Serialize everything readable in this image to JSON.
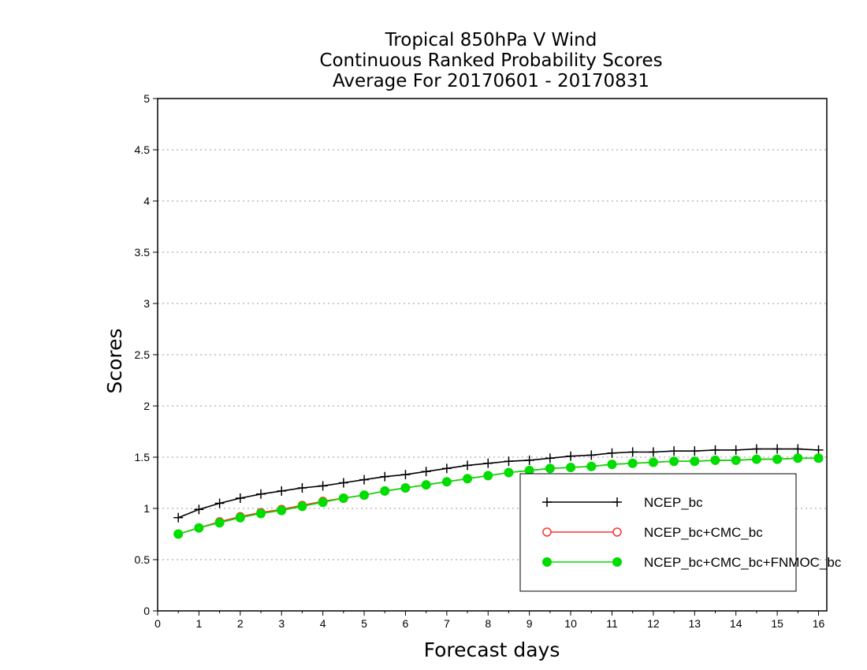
{
  "chart_data": {
    "type": "line",
    "title": [
      "Tropical 850hPa V Wind",
      "Continuous Ranked Probability Scores",
      "Average For 20170601 - 20170831"
    ],
    "xlabel": "Forecast days",
    "ylabel": "Scores",
    "xlim": [
      0,
      16.2
    ],
    "ylim": [
      0,
      5
    ],
    "xticks": [
      0,
      1,
      2,
      3,
      4,
      5,
      6,
      7,
      8,
      9,
      10,
      11,
      12,
      13,
      14,
      15,
      16
    ],
    "xtick_labels": [
      "0",
      "1",
      "2",
      "3",
      "4",
      "5",
      "6",
      "7",
      "8",
      "9",
      "10",
      "11",
      "12",
      "13",
      "14",
      "15",
      "16"
    ],
    "yticks": [
      0,
      0.5,
      1,
      1.5,
      2,
      2.5,
      3,
      3.5,
      4,
      4.5,
      5
    ],
    "ytick_labels": [
      "0",
      "0.5",
      "1",
      "1.5",
      "2",
      "2.5",
      "3",
      "3.5",
      "4",
      "4.5",
      "5"
    ],
    "grid": "horizontal dotted",
    "legend_position": "lower-right",
    "x": [
      0.5,
      1,
      1.5,
      2,
      2.5,
      3,
      3.5,
      4,
      4.5,
      5,
      5.5,
      6,
      6.5,
      7,
      7.5,
      8,
      8.5,
      9,
      9.5,
      10,
      10.5,
      11,
      11.5,
      12,
      12.5,
      13,
      13.5,
      14,
      14.5,
      15,
      15.5,
      16
    ],
    "series": [
      {
        "name": "NCEP_bc",
        "color": "#000000",
        "marker": "plus",
        "values": [
          0.91,
          0.99,
          1.05,
          1.1,
          1.14,
          1.17,
          1.2,
          1.22,
          1.25,
          1.28,
          1.31,
          1.33,
          1.36,
          1.39,
          1.42,
          1.44,
          1.46,
          1.47,
          1.49,
          1.51,
          1.52,
          1.54,
          1.55,
          1.55,
          1.56,
          1.56,
          1.57,
          1.57,
          1.58,
          1.58,
          1.58,
          1.57
        ]
      },
      {
        "name": "NCEP_bc+CMC_bc",
        "color": "#ff3030",
        "marker": "open-circle",
        "values": [
          0.75,
          0.81,
          0.87,
          0.92,
          0.96,
          0.99,
          1.03,
          1.07,
          1.1,
          1.13,
          1.17,
          1.2,
          1.23,
          1.26,
          1.29,
          1.32,
          1.35,
          1.37,
          1.39,
          1.4,
          1.41,
          1.43,
          1.44,
          1.45,
          1.46,
          1.46,
          1.47,
          1.47,
          1.48,
          1.48,
          1.49,
          1.49
        ]
      },
      {
        "name": "NCEP_bc+CMC_bc+FNMOC_bc",
        "color": "#00dd00",
        "marker": "filled-circle",
        "values": [
          0.75,
          0.81,
          0.86,
          0.91,
          0.95,
          0.98,
          1.02,
          1.06,
          1.1,
          1.13,
          1.17,
          1.2,
          1.23,
          1.26,
          1.29,
          1.32,
          1.35,
          1.37,
          1.39,
          1.4,
          1.41,
          1.43,
          1.44,
          1.45,
          1.46,
          1.46,
          1.47,
          1.47,
          1.48,
          1.48,
          1.49,
          1.49
        ]
      }
    ]
  }
}
